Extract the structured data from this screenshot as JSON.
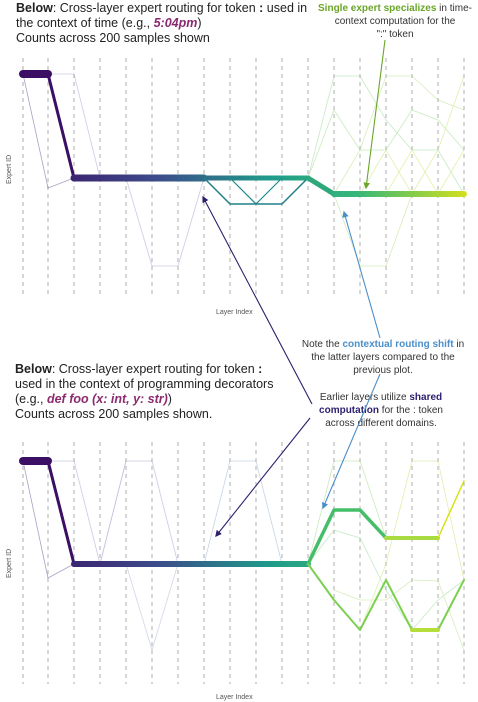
{
  "top": {
    "caption_bold": "Below",
    "caption_mid": ": Cross-layer expert routing for token ",
    "caption_token": ":",
    "caption_mid2": " used in the context of time (e.g., ",
    "caption_example": "5:04pm",
    "caption_end": ")",
    "caption_counts": "Counts across 200 samples shown",
    "y_label": "Expert ID",
    "x_label": "Layer Index"
  },
  "bottom": {
    "caption_bold": "Below",
    "caption_mid": ": Cross-layer expert routing for token ",
    "caption_token": ":",
    "caption_mid2": " used in the context of programming decorators (e.g., ",
    "caption_example": "def foo (x: int, y: str)",
    "caption_end": ")",
    "caption_counts": "Counts across 200 samples shown.",
    "y_label": "Expert ID",
    "x_label": "Layer Index"
  },
  "annotations": {
    "specialize_bold": "Single expert specializes",
    "specialize_rest": " in time-context computation for the",
    "specialize_token": "\":\" token",
    "shift_pre": "Note the ",
    "shift_bold": "contextual routing shift",
    "shift_rest": " in the latter layers compared to the previous plot.",
    "shared_pre": "Earlier layers utilize ",
    "shared_bold": "shared computation",
    "shared_rest": " for the : token across different domains."
  },
  "colors": {
    "specialize": "#6aa628",
    "shift": "#4a8fc9",
    "shared": "#2d1f6e",
    "example": "#8b2a6e"
  }
}
